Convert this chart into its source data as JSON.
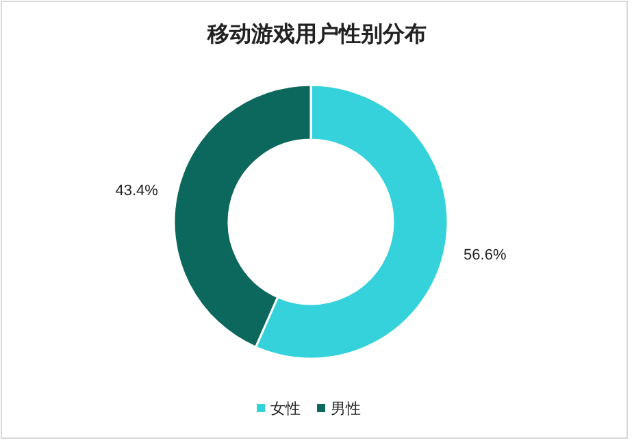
{
  "chart_data": {
    "type": "donut",
    "title": "移动游戏用户性别分布",
    "categories": [
      "女性",
      "男性"
    ],
    "values": [
      56.6,
      43.4
    ],
    "colors": [
      "#35d2dc",
      "#0c675c"
    ],
    "value_labels": [
      "56.6%",
      "43.4%"
    ],
    "legend": "bottom"
  }
}
